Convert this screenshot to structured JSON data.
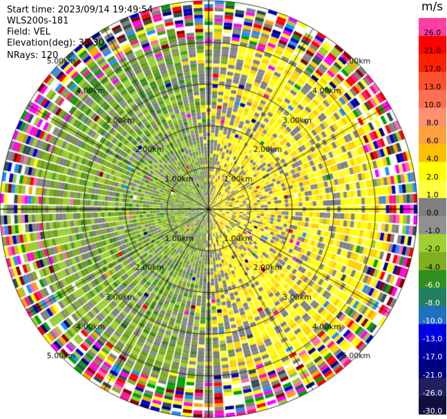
{
  "header": {
    "start_time": "Start time: 2023/09/14 19:49:54",
    "instrument": "WLS200s-181",
    "field": "Field: VEL",
    "elevation": "Elevation(deg): 35.30",
    "nrays": "NRays: 120"
  },
  "chart_data": {
    "type": "heatmap",
    "projection": "polar-ppi",
    "field": "VEL",
    "units": "m/s",
    "nrays": 120,
    "range_km_max": 5.0,
    "range_rings_km": [
      1.0,
      2.0,
      3.0,
      4.0,
      5.0
    ],
    "ring_labels": [
      "1.00km",
      "2.00km",
      "3.00km",
      "4.00km",
      "5.00km"
    ],
    "colorbar": {
      "label": "m/s",
      "tick_labels": [
        "26.0",
        "21.0",
        "17.0",
        "13.0",
        "10.0",
        "8.0",
        "6.0",
        "4.0",
        "2.0",
        "1.0",
        "0.0",
        "-1.0",
        "-2.0",
        "-4.0",
        "-6.0",
        "-8.0",
        "-10.0",
        "-13.0",
        "-17.0",
        "-21.0",
        "-26.0",
        "-30.0"
      ],
      "colors": [
        "#ff3fa0",
        "#ff0000",
        "#ff2000",
        "#ff5030",
        "#ff7050",
        "#ff9070",
        "#ffa040",
        "#ffc000",
        "#ffff00",
        "#ffff40",
        "#808080",
        "#909090",
        "#a0d030",
        "#80b020",
        "#309020",
        "#208060",
        "#2070c0",
        "#0000e0",
        "#0000a0",
        "#000080",
        "#202060",
        "#101040"
      ]
    },
    "pattern": {
      "positive_sector_center_deg": 90,
      "negative_sector_center_deg": 270,
      "noisy_outer_range_km": 4.0
    }
  }
}
